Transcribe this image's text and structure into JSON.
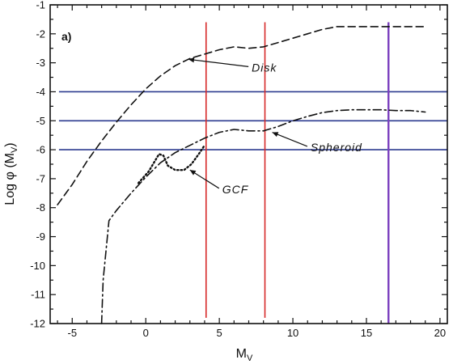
{
  "chart_data": {
    "type": "line",
    "panel_label": "a)",
    "xlabel": "M",
    "xlabel_sub": "V",
    "ylabel": "Log φ (M",
    "ylabel_sub": "V",
    "ylabel_close": ")",
    "xlim": [
      -6.5,
      20.5
    ],
    "ylim": [
      -12,
      -1
    ],
    "xticks": [
      -5,
      0,
      5,
      10,
      15,
      20
    ],
    "xtick_labels": [
      "-5",
      "0",
      "5",
      "10",
      "15",
      "20"
    ],
    "yticks": [
      -1,
      -2,
      -3,
      -4,
      -5,
      -6,
      -7,
      -8,
      -9,
      -10,
      -11,
      -12
    ],
    "ytick_labels": [
      "-1",
      "-2",
      "-3",
      "-4",
      "-5",
      "-6",
      "-7",
      "-8",
      "-9",
      "-10",
      "-11",
      "-12"
    ],
    "series": [
      {
        "name": "Disk",
        "style": "dashed",
        "x": [
          -6,
          -5,
          -4,
          -3,
          -2,
          -1,
          0,
          1,
          2,
          3,
          4,
          5,
          6,
          7,
          8,
          9,
          10,
          11,
          12,
          13,
          14,
          15,
          16,
          17,
          18,
          19
        ],
        "y": [
          -7.9,
          -7.2,
          -6.4,
          -5.7,
          -5.05,
          -4.45,
          -3.9,
          -3.45,
          -3.1,
          -2.85,
          -2.7,
          -2.55,
          -2.45,
          -2.5,
          -2.45,
          -2.3,
          -2.15,
          -2.0,
          -1.85,
          -1.75,
          -1.75,
          -1.75,
          -1.75,
          -1.75,
          -1.75,
          -1.75
        ]
      },
      {
        "name": "Spheroid",
        "style": "dashdot",
        "x": [
          -3,
          -2.9,
          -2.5,
          -2,
          -1,
          0,
          1,
          2,
          3,
          4,
          5,
          6,
          7,
          8,
          9,
          10,
          11,
          12,
          13,
          14,
          15,
          16,
          17,
          18,
          19
        ],
        "y": [
          -12,
          -10.5,
          -8.45,
          -8.1,
          -7.5,
          -6.95,
          -6.45,
          -6.1,
          -5.85,
          -5.6,
          -5.4,
          -5.3,
          -5.35,
          -5.35,
          -5.2,
          -5.0,
          -4.85,
          -4.72,
          -4.65,
          -4.62,
          -4.62,
          -4.62,
          -4.65,
          -4.65,
          -4.7
        ]
      },
      {
        "name": "GCF",
        "style": "dotted",
        "x": [
          -0.5,
          0.2,
          0.9,
          1.2,
          1.5,
          2,
          2.6,
          3.1,
          3.6,
          4.0
        ],
        "y": [
          -7.15,
          -6.75,
          -6.15,
          -6.2,
          -6.55,
          -6.7,
          -6.7,
          -6.5,
          -6.15,
          -5.85
        ]
      }
    ],
    "annotations": [
      {
        "text": "Disk",
        "x": 7.2,
        "y": -3.3,
        "arrow_to": [
          2.9,
          -2.88
        ]
      },
      {
        "text": "Spheroid",
        "x": 11.2,
        "y": -6.05,
        "arrow_to": [
          8.6,
          -5.4
        ]
      },
      {
        "text": "GCF",
        "x": 5.2,
        "y": -7.5,
        "arrow_to": [
          3.0,
          -6.7
        ]
      }
    ],
    "horizontal_lines": [
      {
        "y": -4,
        "color": "#2b3a8f"
      },
      {
        "y": -5,
        "color": "#2b3a8f"
      },
      {
        "y": -6,
        "color": "#2b3a8f"
      }
    ],
    "vertical_lines": [
      {
        "x": 4.1,
        "y_from": -11.8,
        "y_to": -1.6,
        "color": "#d62a2a"
      },
      {
        "x": 8.1,
        "y_from": -11.8,
        "y_to": -1.6,
        "color": "#d62a2a"
      },
      {
        "x": 16.5,
        "y_from": -12,
        "y_to": -1.6,
        "color": "#7b3fbf"
      }
    ],
    "grid": false
  }
}
